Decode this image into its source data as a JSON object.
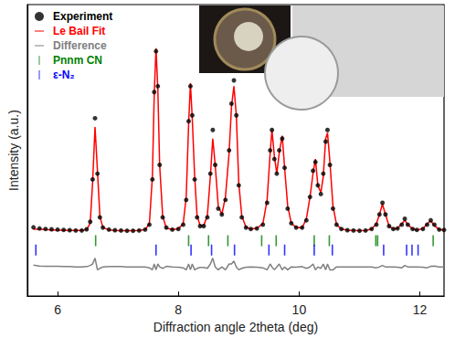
{
  "chart_data": {
    "type": "line",
    "x_label": "Diffraction angle 2theta (deg)",
    "y_label": "Intensity (a.u.)",
    "xlim": [
      5.5,
      12.4
    ],
    "xticks": [
      6,
      8,
      10,
      12
    ],
    "ylim": [
      0,
      100
    ],
    "tick_labels": "x",
    "grid": false,
    "legend": "upper left",
    "x": [
      5.6,
      5.7,
      5.8,
      5.9,
      6.0,
      6.1,
      6.2,
      6.3,
      6.4,
      6.48,
      6.54,
      6.58,
      6.62,
      6.66,
      6.7,
      6.75,
      6.85,
      6.95,
      7.05,
      7.15,
      7.25,
      7.35,
      7.45,
      7.52,
      7.57,
      7.6,
      7.63,
      7.66,
      7.69,
      7.74,
      7.8,
      7.9,
      8.0,
      8.08,
      8.13,
      8.17,
      8.2,
      8.23,
      8.27,
      8.31,
      8.36,
      8.42,
      8.48,
      8.53,
      8.57,
      8.61,
      8.66,
      8.72,
      8.78,
      8.84,
      8.88,
      8.92,
      8.96,
      9.0,
      9.05,
      9.12,
      9.2,
      9.3,
      9.4,
      9.47,
      9.52,
      9.55,
      9.59,
      9.63,
      9.67,
      9.72,
      9.76,
      9.81,
      9.87,
      9.95,
      10.05,
      10.12,
      10.18,
      10.23,
      10.27,
      10.31,
      10.36,
      10.4,
      10.44,
      10.47,
      10.51,
      10.56,
      10.62,
      10.7,
      10.8,
      10.9,
      11.0,
      11.1,
      11.2,
      11.28,
      11.33,
      11.38,
      11.43,
      11.49,
      11.56,
      11.63,
      11.7,
      11.75,
      11.8,
      11.88,
      11.95,
      12.05,
      12.12,
      12.18,
      12.24,
      12.32,
      12.4
    ],
    "series": [
      {
        "name": "Experiment",
        "type": "scatter",
        "marker": "circle",
        "color": "#000000",
        "values": [
          23.6,
          23.2,
          23.0,
          22.9,
          22.8,
          22.7,
          22.6,
          22.5,
          22.5,
          22.9,
          25.5,
          40,
          61,
          42,
          27,
          23.5,
          22.8,
          22.6,
          22.5,
          22.4,
          22.4,
          22.5,
          22.8,
          24.5,
          40,
          70,
          84,
          72,
          45,
          27,
          23.5,
          22.8,
          23,
          24.5,
          33,
          60,
          72,
          62,
          40,
          27,
          24,
          24,
          27,
          42,
          57,
          45,
          30,
          28,
          33,
          50,
          66,
          74,
          62,
          38,
          27,
          23.5,
          23,
          23.2,
          24.5,
          32,
          50,
          57,
          47,
          42,
          50,
          54,
          44,
          30,
          25,
          23.5,
          23.5,
          26,
          34,
          43,
          46,
          38,
          35,
          42,
          53,
          57,
          45,
          30,
          24.5,
          23,
          22.6,
          22.5,
          22.4,
          22.5,
          23,
          24.5,
          28,
          32,
          28,
          24,
          23,
          23.2,
          24.5,
          26.5,
          24.5,
          23,
          22.7,
          23,
          24.5,
          26,
          24.5,
          22.8,
          22.7
        ]
      },
      {
        "name": "Le Bail Fit",
        "type": "line",
        "line_style": "solid",
        "color": "#ff0000",
        "values": [
          23.0,
          22.9,
          22.8,
          22.7,
          22.6,
          22.6,
          22.5,
          22.5,
          22.5,
          22.8,
          25,
          39,
          58,
          43,
          27.5,
          23.5,
          22.7,
          22.5,
          22.4,
          22.4,
          22.4,
          22.5,
          22.8,
          24.8,
          41,
          69,
          85,
          71,
          45,
          27.5,
          23.3,
          22.8,
          23.1,
          24.8,
          34,
          59,
          73,
          61,
          41,
          27.5,
          24.2,
          24.2,
          27.5,
          41,
          54,
          45,
          31,
          28,
          34,
          49,
          65,
          72,
          62,
          39,
          27.5,
          23.6,
          23,
          23.3,
          24.8,
          33,
          49,
          57,
          48,
          42,
          49,
          55,
          44,
          31,
          25,
          23.6,
          23.4,
          26.5,
          34,
          42,
          47,
          38,
          35.5,
          41,
          54,
          56,
          46,
          31,
          24.5,
          23,
          22.6,
          22.5,
          22.4,
          22.5,
          23,
          24.8,
          28,
          31.5,
          28,
          24,
          23,
          23.3,
          24.8,
          26,
          24.5,
          23,
          22.7,
          23.1,
          24.8,
          25.8,
          24.2,
          22.8,
          22.7
        ]
      },
      {
        "name": "Difference",
        "type": "line",
        "line_style": "solid",
        "color": "#808080",
        "values": [
          10.6,
          10.3,
          10.2,
          10.2,
          10.2,
          10.1,
          10.1,
          10,
          10,
          10.1,
          10.5,
          11,
          13,
          9,
          9.5,
          10,
          10.1,
          10.1,
          10.1,
          10,
          10,
          10,
          10,
          9.7,
          9,
          11,
          9,
          11,
          10,
          9.5,
          10.2,
          10,
          9.9,
          9.7,
          9,
          11,
          9,
          11,
          9,
          9.5,
          9.8,
          9.8,
          9.5,
          11,
          13,
          10,
          9,
          10,
          9,
          11,
          11,
          12,
          10,
          9,
          9.5,
          9.9,
          10,
          9.9,
          9.7,
          9,
          11,
          10,
          9,
          10,
          11,
          9,
          10,
          9,
          10,
          9.9,
          10.1,
          9.5,
          10,
          11,
          9,
          10,
          9.5,
          11,
          9,
          11,
          9,
          9,
          10,
          10,
          10,
          10,
          10,
          10,
          10,
          9.7,
          10,
          10.5,
          10,
          10,
          10,
          9.9,
          9.7,
          10.5,
          10,
          10,
          10,
          9.9,
          9.7,
          10.2,
          10.3,
          10,
          10
        ]
      },
      {
        "name": "Pnnm CN",
        "type": "scatter",
        "marker": "vline",
        "color": "#008000",
        "x": [
          6.63,
          8.17,
          8.5,
          8.82,
          9.38,
          9.62,
          10.25,
          10.5,
          11.27,
          11.3,
          12.22
        ],
        "values": [
          19,
          19,
          19,
          19,
          19,
          19,
          19,
          19,
          19,
          19,
          19
        ]
      },
      {
        "name": "ε-N₂",
        "type": "scatter",
        "marker": "vline",
        "color": "#0000ff",
        "x": [
          5.64,
          7.63,
          8.21,
          8.55,
          8.93,
          9.5,
          9.76,
          10.25,
          10.55,
          11.4,
          11.78,
          11.87,
          11.97
        ],
        "values": [
          15.8,
          15.8,
          15.8,
          15.8,
          15.8,
          15.8,
          15.8,
          15.8,
          15.8,
          15.8,
          15.8,
          15.8,
          15.8
        ]
      }
    ]
  }
}
